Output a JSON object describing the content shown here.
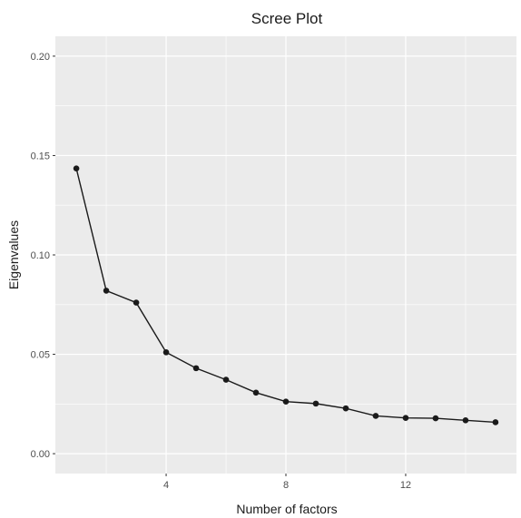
{
  "chart_data": {
    "type": "line",
    "title": "Scree Plot",
    "xlabel": "Number of factors",
    "ylabel": "Eigenvalues",
    "x": [
      1,
      2,
      3,
      4,
      5,
      6,
      7,
      8,
      9,
      10,
      11,
      12,
      13,
      14,
      15
    ],
    "series": [
      {
        "values": [
          0.1435,
          0.082,
          0.076,
          0.051,
          0.043,
          0.0372,
          0.0307,
          0.0262,
          0.0252,
          0.0228,
          0.019,
          0.018,
          0.0178,
          0.0168,
          0.0158
        ]
      }
    ],
    "xlim": [
      0.3,
      15.7
    ],
    "ylim": [
      -0.01,
      0.21
    ],
    "xticks": [
      4,
      8,
      12
    ],
    "xtick_labels": [
      "4",
      "8",
      "12"
    ],
    "yticks": [
      0,
      0.05,
      0.1,
      0.15,
      0.2
    ],
    "ytick_labels": [
      "0.00",
      "0.05",
      "0.10",
      "0.15",
      "0.20"
    ],
    "grid": true,
    "line_color": "#1a1a1a",
    "panel_color": "#ebebeb",
    "grid_color": "#ffffff"
  }
}
